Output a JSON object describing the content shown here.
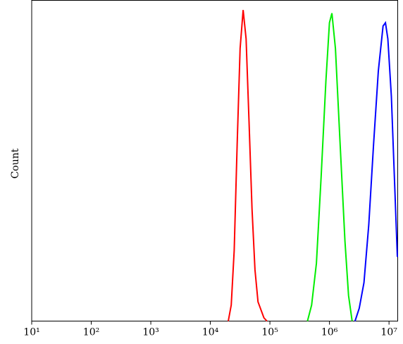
{
  "chart_data": {
    "type": "line",
    "log_x": true,
    "ylabel": "Count",
    "xlim": [
      10,
      14000000
    ],
    "ylim": [
      0,
      100
    ],
    "xticks": [
      {
        "value": 10,
        "label": "10¹"
      },
      {
        "value": 100,
        "label": "10²"
      },
      {
        "value": 1000,
        "label": "10³"
      },
      {
        "value": 10000,
        "label": "10⁴"
      },
      {
        "value": 100000,
        "label": "10⁵"
      },
      {
        "value": 1000000,
        "label": "10⁶"
      },
      {
        "value": 10000000,
        "label": "10⁷"
      }
    ],
    "series": [
      {
        "color": "#ff0000",
        "x": [
          20000,
          22400,
          25100,
          28200,
          31600,
          35500,
          39800,
          44700,
          50100,
          56200,
          63100,
          79400,
          89100
        ],
        "values": [
          0,
          5,
          22,
          55,
          85,
          97,
          88,
          62,
          35,
          16,
          6,
          1,
          0
        ]
      },
      {
        "color": "#00ee00",
        "x": [
          427000,
          501000,
          603000,
          724000,
          871000,
          1000000,
          1100000,
          1260000,
          1510000,
          1820000,
          2090000,
          2400000
        ],
        "values": [
          0,
          5,
          18,
          45,
          75,
          93,
          96,
          85,
          55,
          25,
          8,
          0
        ]
      },
      {
        "color": "#0000ff",
        "x": [
          2690000,
          3160000,
          3800000,
          4570000,
          5500000,
          6610000,
          7940000,
          8710000,
          9550000,
          10960000,
          12590000,
          13800000
        ],
        "values": [
          0,
          4,
          12,
          30,
          55,
          78,
          92,
          93,
          88,
          70,
          40,
          20
        ]
      }
    ]
  }
}
